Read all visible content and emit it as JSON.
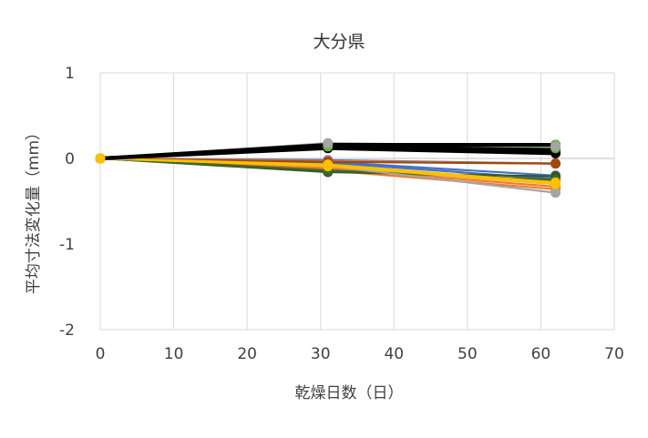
{
  "chart_data": {
    "type": "line",
    "title": "大分県",
    "xlabel": "乾燥日数（日）",
    "ylabel": "平均寸法変化量（mm）",
    "xlim": [
      0,
      70
    ],
    "ylim": [
      -2,
      1
    ],
    "x_ticks": [
      "0",
      "10",
      "20",
      "30",
      "40",
      "50",
      "60",
      "70"
    ],
    "y_ticks": [
      "1",
      "0",
      "-1",
      "-2"
    ],
    "grid": "vertical",
    "legend": "none",
    "x": [
      0,
      31,
      62
    ],
    "series": [
      {
        "color": "#000000",
        "values": [
          0,
          0.16,
          0.16
        ]
      },
      {
        "color": "#000000",
        "values": [
          0,
          0.14,
          0.1
        ]
      },
      {
        "color": "#000000",
        "values": [
          0,
          0.12,
          0.06
        ]
      },
      {
        "color": "#70AD47",
        "values": [
          0,
          0.17,
          0.16
        ]
      },
      {
        "color": "#70AD47",
        "values": [
          0,
          0.14,
          0.12
        ]
      },
      {
        "color": "#A5A5A5",
        "values": [
          0,
          0.18,
          0.14
        ]
      },
      {
        "color": "#4472C4",
        "values": [
          0,
          -0.02,
          -0.06
        ]
      },
      {
        "color": "#4472C4",
        "values": [
          0,
          -0.04,
          -0.2
        ]
      },
      {
        "color": "#4472C4",
        "values": [
          0,
          -0.05,
          -0.24
        ]
      },
      {
        "color": "#ED7D31",
        "values": [
          0,
          -0.03,
          -0.06
        ]
      },
      {
        "color": "#ED7D31",
        "values": [
          0,
          -0.08,
          -0.27
        ]
      },
      {
        "color": "#ED7D31",
        "values": [
          0,
          -0.1,
          -0.3
        ]
      },
      {
        "color": "#ED7D31",
        "values": [
          0,
          -0.12,
          -0.33
        ]
      },
      {
        "color": "#ED7D31",
        "values": [
          0,
          -0.14,
          -0.36
        ]
      },
      {
        "color": "#9E480E",
        "values": [
          0,
          -0.04,
          -0.06
        ]
      },
      {
        "color": "#375623",
        "values": [
          0,
          -0.16,
          -0.21
        ]
      },
      {
        "color": "#43682B",
        "values": [
          0,
          -0.14,
          -0.25
        ]
      },
      {
        "color": "#A5A5A5",
        "values": [
          0,
          -0.09,
          -0.4
        ]
      },
      {
        "color": "#FFC000",
        "values": [
          0,
          -0.09,
          -0.3
        ]
      },
      {
        "color": "#FFC000",
        "values": [
          0,
          -0.07,
          -0.28
        ]
      }
    ]
  }
}
